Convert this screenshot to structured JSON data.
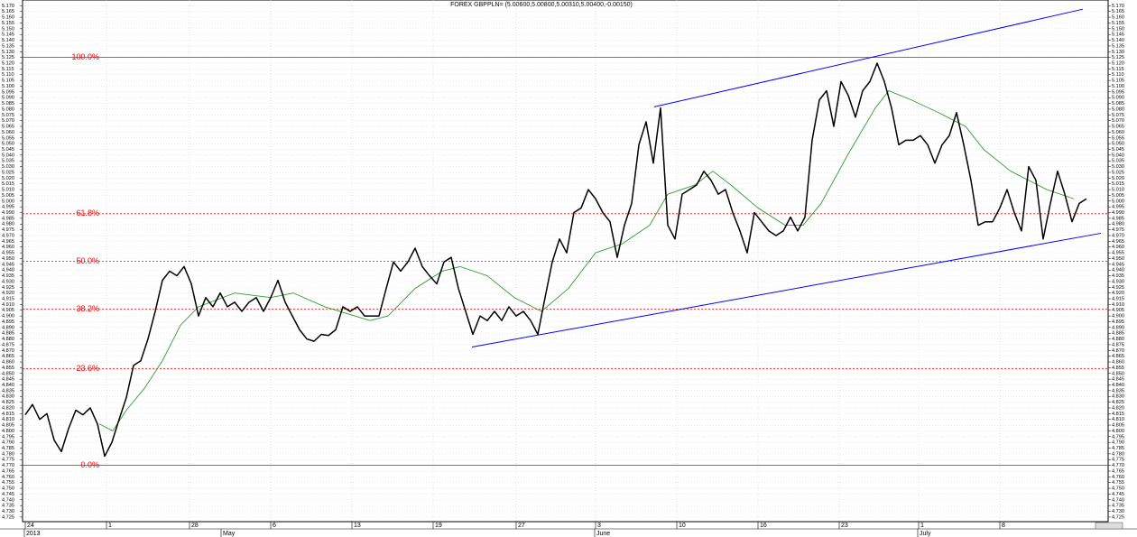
{
  "chart_data": {
    "type": "line",
    "title": "FOREX GBPPLN= (5.00600,5.00800,5.00310,5.00400,-0.00150)",
    "xlim": [
      -0.375,
      150
    ],
    "ylim": [
      4.721,
      5.175
    ],
    "grid": true,
    "xticks": [
      {
        "value": 0,
        "label": "24"
      },
      {
        "value": 11.25,
        "label": "1"
      },
      {
        "value": 22.75,
        "label": "28"
      },
      {
        "value": 34,
        "label": "6"
      },
      {
        "value": 45.25,
        "label": "13"
      },
      {
        "value": 56.5,
        "label": "19"
      },
      {
        "value": 68,
        "label": "27"
      },
      {
        "value": 79,
        "label": "3"
      },
      {
        "value": 90.25,
        "label": "10"
      },
      {
        "value": 101.5,
        "label": "16"
      },
      {
        "value": 112.75,
        "label": "23"
      },
      {
        "value": 123.75,
        "label": "1"
      },
      {
        "value": 135,
        "label": "8"
      }
    ],
    "period_labels": [
      {
        "value": -0.125,
        "label": "2013"
      },
      {
        "value": 27.125,
        "label": "May"
      },
      {
        "value": 78.875,
        "label": "June"
      },
      {
        "value": 123.625,
        "label": "July"
      }
    ],
    "yticks": [
      4.725,
      {
        "value": 4.73,
        "label": "4.730"
      },
      4.735,
      {
        "value": 4.74,
        "label": "4.740"
      },
      4.745,
      {
        "value": 4.75,
        "label": "4.750"
      },
      4.755,
      {
        "value": 4.76,
        "label": "4.760"
      },
      4.765,
      {
        "value": 4.77,
        "label": "4.770"
      },
      4.775,
      {
        "value": 4.78,
        "label": "4.780"
      },
      4.785,
      {
        "value": 4.79,
        "label": "4.790"
      },
      4.795,
      {
        "value": 4.8,
        "label": "4.800"
      },
      4.805,
      {
        "value": 4.81,
        "label": "4.810"
      },
      4.815,
      {
        "value": 4.82,
        "label": "4.820"
      },
      4.825,
      {
        "value": 4.83,
        "label": "4.830"
      },
      4.835,
      {
        "value": 4.84,
        "label": "4.840"
      },
      4.845,
      {
        "value": 4.85,
        "label": "4.850"
      },
      4.855,
      {
        "value": 4.86,
        "label": "4.860"
      },
      4.865,
      {
        "value": 4.87,
        "label": "4.870"
      },
      4.875,
      {
        "value": 4.88,
        "label": "4.880"
      },
      4.885,
      {
        "value": 4.89,
        "label": "4.890"
      },
      4.895,
      {
        "value": 4.9,
        "label": "4.900"
      },
      4.905,
      {
        "value": 4.91,
        "label": "4.910"
      },
      4.915,
      {
        "value": 4.92,
        "label": "4.920"
      },
      4.925,
      {
        "value": 4.93,
        "label": "4.930"
      },
      4.935,
      {
        "value": 4.94,
        "label": "4.940"
      },
      4.945,
      {
        "value": 4.95,
        "label": "4.950"
      },
      4.955,
      {
        "value": 4.96,
        "label": "4.960"
      },
      4.965,
      {
        "value": 4.97,
        "label": "4.970"
      },
      4.975,
      {
        "value": 4.98,
        "label": "4.980"
      },
      4.985,
      {
        "value": 4.99,
        "label": "4.990"
      },
      4.995,
      {
        "value": 5,
        "label": "5.000"
      },
      5.005,
      {
        "value": 5.01,
        "label": "5.010"
      },
      5.015,
      {
        "value": 5.02,
        "label": "5.020"
      },
      5.025,
      {
        "value": 5.03,
        "label": "5.030"
      },
      5.035,
      {
        "value": 5.04,
        "label": "5.040"
      },
      5.045,
      {
        "value": 5.05,
        "label": "5.050"
      },
      5.055,
      {
        "value": 5.06,
        "label": "5.060"
      },
      5.065,
      {
        "value": 5.07,
        "label": "5.070"
      },
      5.075,
      {
        "value": 5.08,
        "label": "5.080"
      },
      5.085,
      {
        "value": 5.09,
        "label": "5.090"
      },
      5.095,
      {
        "value": 5.1,
        "label": "5.100"
      },
      5.105,
      {
        "value": 5.11,
        "label": "5.110"
      },
      5.115,
      {
        "value": 5.12,
        "label": "5.120"
      },
      5.125,
      {
        "value": 5.13,
        "label": "5.130"
      },
      5.135,
      {
        "value": 5.14,
        "label": "5.140"
      },
      5.145,
      {
        "value": 5.15,
        "label": "5.150"
      },
      5.155,
      {
        "value": 5.16,
        "label": "5.160"
      },
      5.165,
      {
        "value": 5.17,
        "label": "5.170"
      }
    ],
    "series": [
      {
        "color": "#000000",
        "values": [
          4.814,
          4.823,
          4.81,
          4.815,
          4.792,
          4.782,
          4.802,
          4.818,
          4.814,
          4.82,
          4.806,
          4.778,
          4.79,
          4.81,
          4.829,
          4.857,
          4.861,
          4.88,
          4.904,
          4.931,
          4.939,
          4.935,
          4.943,
          4.928,
          4.9,
          4.916,
          4.908,
          4.92,
          4.908,
          4.912,
          4.904,
          4.912,
          4.916,
          4.904,
          4.916,
          4.931,
          4.912,
          4.9,
          4.888,
          4.88,
          4.878,
          4.884,
          4.883,
          4.888,
          4.908,
          4.904,
          4.908,
          4.9,
          4.9,
          4.9,
          4.924,
          4.947,
          4.939,
          4.947,
          4.959,
          4.943,
          4.935,
          4.928,
          4.947,
          4.951,
          4.924,
          4.904,
          4.884,
          4.9,
          4.896,
          4.904,
          4.896,
          4.908,
          4.9,
          4.904,
          4.896,
          4.884,
          4.916,
          4.947,
          4.967,
          4.955,
          4.99,
          4.994,
          5.01,
          5.002,
          4.99,
          4.982,
          4.951,
          4.979,
          4.998,
          5.049,
          5.069,
          5.033,
          5.081,
          4.979,
          4.967,
          5.006,
          5.01,
          5.014,
          5.026,
          5.018,
          5.006,
          5.01,
          4.99,
          4.974,
          4.955,
          4.99,
          4.982,
          4.974,
          4.97,
          4.974,
          4.986,
          4.974,
          4.986,
          5.053,
          5.088,
          5.096,
          5.065,
          5.104,
          5.092,
          5.073,
          5.096,
          5.104,
          5.12,
          5.104,
          5.081,
          5.049,
          5.053,
          5.053,
          5.057,
          5.049,
          5.033,
          5.049,
          5.057,
          5.077,
          5.049,
          5.018,
          4.979,
          4.982,
          4.982,
          4.994,
          5.01,
          4.99,
          4.974,
          5.03,
          5.018,
          4.967,
          4.998,
          5.026,
          5.006,
          4.982,
          4.998,
          5.002
        ]
      },
      {
        "color": "#2e9e2e",
        "x": [
          10.25,
          12.125,
          14,
          16.5,
          19,
          21.5,
          24,
          29,
          34,
          37.125,
          41.5,
          47.75,
          50.25,
          54,
          57.75,
          60.25,
          64,
          67.75,
          71.5,
          75.25,
          79,
          82.75,
          86.5,
          89,
          92.75,
          95.25,
          97.75,
          101.5,
          105.25,
          107.75,
          110.25,
          114,
          117.75,
          119.625,
          122.75,
          126.5,
          130.25,
          132.75,
          136.5,
          141.5,
          145.25
        ],
        "values": [
          4.806,
          4.8,
          4.818,
          4.837,
          4.861,
          4.892,
          4.908,
          4.92,
          4.916,
          4.92,
          4.908,
          4.896,
          4.9,
          4.924,
          4.939,
          4.943,
          4.935,
          4.916,
          4.904,
          4.924,
          4.955,
          4.963,
          4.979,
          5.006,
          5.014,
          5.026,
          5.014,
          4.994,
          4.979,
          4.979,
          4.998,
          5.041,
          5.081,
          5.096,
          5.088,
          5.077,
          5.065,
          5.045,
          5.026,
          5.01,
          5.002
        ]
      }
    ],
    "channel_lines": [
      {
        "color": "#0000ff",
        "x": [
          61.875,
          149
        ],
        "values": [
          4.873,
          4.972
        ]
      },
      {
        "color": "#0000ff",
        "x": [
          87.125,
          146.5
        ],
        "values": [
          5.082,
          5.167
        ]
      }
    ],
    "fib_levels": [
      {
        "label": "0.0%",
        "value": 4.77,
        "dashed": false
      },
      {
        "label": "23.6%",
        "value": 4.854,
        "dashed": true
      },
      {
        "label": "38.2%",
        "value": 4.906,
        "dashed": true
      },
      {
        "label": "50.0%",
        "value": 4.9475,
        "dashed": true
      },
      {
        "label": "61.8%",
        "value": 4.989,
        "dashed": true
      },
      {
        "label": "100.0%",
        "value": 5.125,
        "dashed": false
      }
    ],
    "fib_color": "#ff0000"
  }
}
